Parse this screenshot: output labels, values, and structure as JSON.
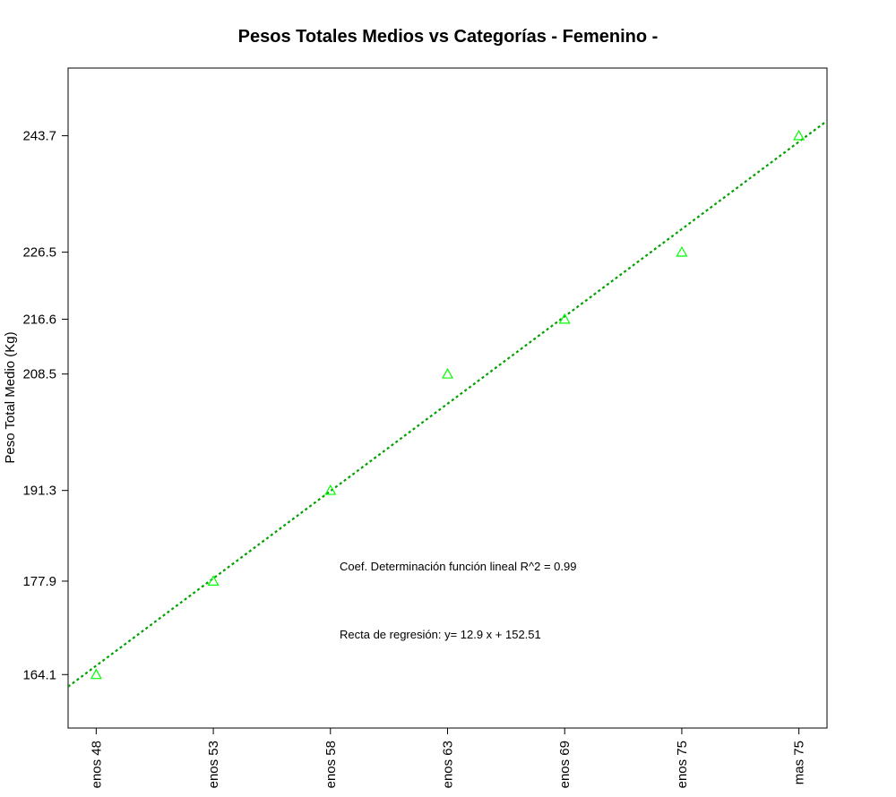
{
  "chart_data": {
    "type": "scatter",
    "title": "Pesos Totales Medios vs Categorías - Femenino -",
    "xlabel": "",
    "ylabel": "Peso Total Medio (Kg)",
    "categories": [
      "enos 48",
      "enos 53",
      "enos 58",
      "enos 63",
      "enos 69",
      "enos 75",
      "mas 75"
    ],
    "x": [
      1,
      2,
      3,
      4,
      5,
      6,
      7
    ],
    "values": [
      164.1,
      177.9,
      191.3,
      208.5,
      216.6,
      226.5,
      243.7
    ],
    "yticks": [
      164.1,
      177.9,
      191.3,
      208.5,
      216.6,
      226.5,
      243.7
    ],
    "yticks_labels": [
      "164.1",
      "177.9",
      "191.3",
      "208.5",
      "216.6",
      "226.5",
      "243.7"
    ],
    "ylim": [
      156.2,
      253.7
    ],
    "xlim": [
      0.76,
      7.24
    ],
    "marker": "triangle",
    "point_color": "#00ff00",
    "regression": {
      "slope": 12.9,
      "intercept": 152.51,
      "color": "#00a000",
      "style": "dotted"
    },
    "annotations": {
      "r2": "Coef. Determinación función lineal R^2 = 0.99",
      "equation": "Recta de regresión: y= 12.9 x + 152.51"
    },
    "grid": false
  }
}
